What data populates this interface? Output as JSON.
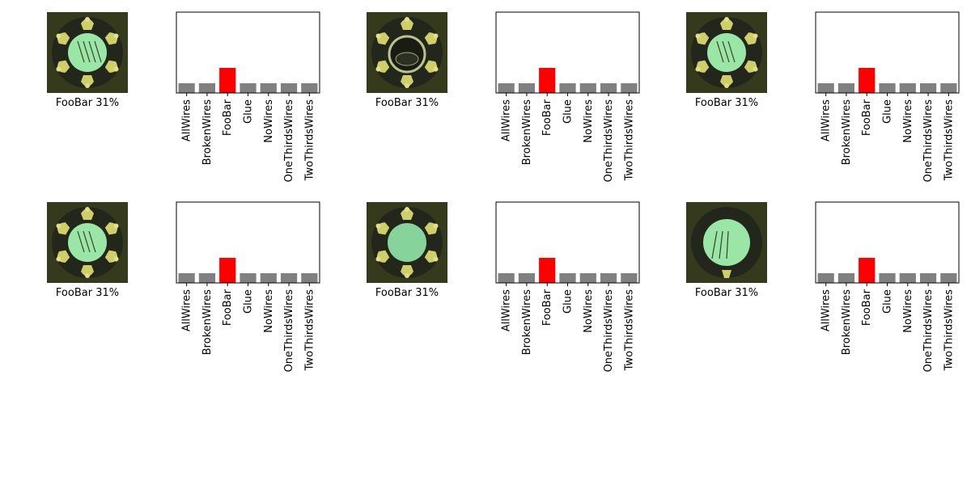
{
  "colors": {
    "highlight": "#ff0000",
    "other": "#808080",
    "frame": "#000000"
  },
  "panels": [
    {
      "caption": "FooBar 31%",
      "image": "specimen-wires-four",
      "chart_data": {
        "type": "bar",
        "categories": [
          "AllWires",
          "BrokenWires",
          "FooBar",
          "Glue",
          "NoWires",
          "OneThirdsWires",
          "TwoThirdsWires"
        ],
        "values": [
          0.12,
          0.12,
          0.31,
          0.12,
          0.12,
          0.12,
          0.12
        ],
        "highlight": "FooBar",
        "ylim": [
          0,
          1
        ],
        "yticks": "hidden",
        "grid": false
      }
    },
    {
      "caption": "FooBar 31%",
      "image": "specimen-ring",
      "chart_data": {
        "type": "bar",
        "categories": [
          "AllWires",
          "BrokenWires",
          "FooBar",
          "Glue",
          "NoWires",
          "OneThirdsWires",
          "TwoThirdsWires"
        ],
        "values": [
          0.12,
          0.12,
          0.31,
          0.12,
          0.12,
          0.12,
          0.12
        ],
        "highlight": "FooBar",
        "ylim": [
          0,
          1
        ],
        "yticks": "hidden",
        "grid": false
      }
    },
    {
      "caption": "FooBar 31%",
      "image": "specimen-wires-three",
      "chart_data": {
        "type": "bar",
        "categories": [
          "AllWires",
          "BrokenWires",
          "FooBar",
          "Glue",
          "NoWires",
          "OneThirdsWires",
          "TwoThirdsWires"
        ],
        "values": [
          0.12,
          0.12,
          0.31,
          0.12,
          0.12,
          0.12,
          0.12
        ],
        "highlight": "FooBar",
        "ylim": [
          0,
          1
        ],
        "yticks": "hidden",
        "grid": false
      }
    },
    {
      "caption": "FooBar 31%",
      "image": "specimen-wires-three",
      "chart_data": {
        "type": "bar",
        "categories": [
          "AllWires",
          "BrokenWires",
          "FooBar",
          "Glue",
          "NoWires",
          "OneThirdsWires",
          "TwoThirdsWires"
        ],
        "values": [
          0.12,
          0.12,
          0.31,
          0.12,
          0.12,
          0.12,
          0.12
        ],
        "highlight": "FooBar",
        "ylim": [
          0,
          1
        ],
        "yticks": "hidden",
        "grid": false
      }
    },
    {
      "caption": "FooBar 31%",
      "image": "specimen-no-wires",
      "chart_data": {
        "type": "bar",
        "categories": [
          "AllWires",
          "BrokenWires",
          "FooBar",
          "Glue",
          "NoWires",
          "OneThirdsWires",
          "TwoThirdsWires"
        ],
        "values": [
          0.12,
          0.12,
          0.31,
          0.12,
          0.12,
          0.12,
          0.12
        ],
        "highlight": "FooBar",
        "ylim": [
          0,
          1
        ],
        "yticks": "hidden",
        "grid": false
      }
    },
    {
      "caption": "FooBar 31%",
      "image": "specimen-broken-wires",
      "chart_data": {
        "type": "bar",
        "categories": [
          "AllWires",
          "BrokenWires",
          "FooBar",
          "Glue",
          "NoWires",
          "OneThirdsWires",
          "TwoThirdsWires"
        ],
        "values": [
          0.12,
          0.12,
          0.31,
          0.12,
          0.12,
          0.12,
          0.12
        ],
        "highlight": "FooBar",
        "ylim": [
          0,
          1
        ],
        "yticks": "hidden",
        "grid": false
      }
    }
  ]
}
